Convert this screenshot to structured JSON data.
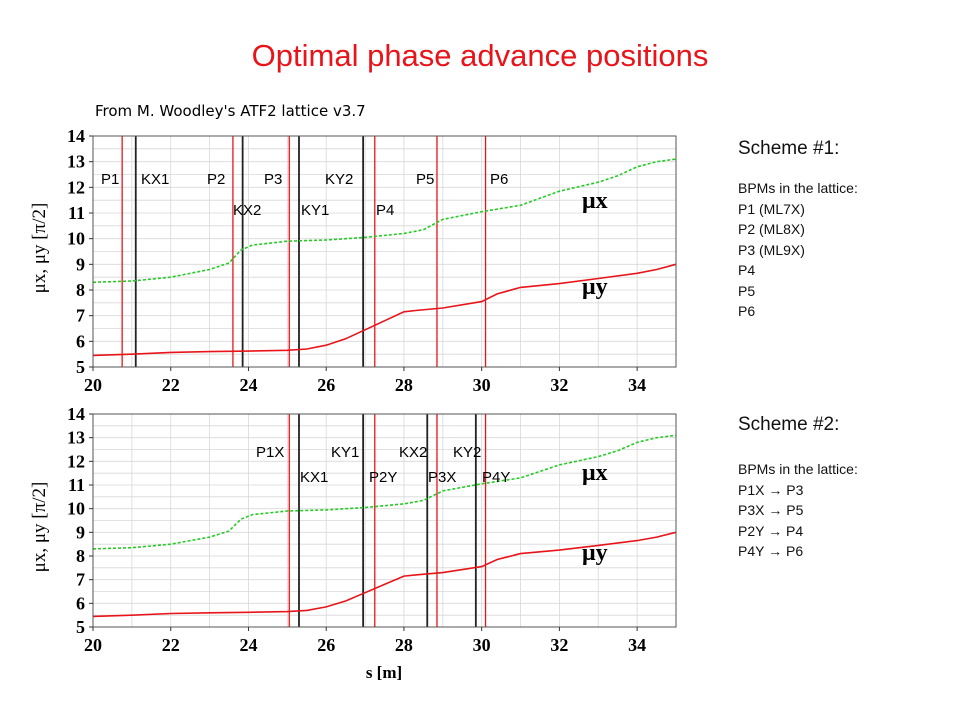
{
  "slide": {
    "title": "Optimal phase advance positions",
    "source": "From M. Woodley's ATF2 lattice v3.7"
  },
  "colors": {
    "title": "#e8141a",
    "mu_x": "#22cc22",
    "mu_y": "#e8141a",
    "bpm_line": "#e8141a",
    "corrector_line": "#222222"
  },
  "schemes": [
    {
      "title": "Scheme #1:",
      "list_header": "BPMs in the lattice:",
      "items": [
        "P1 (ML7X)",
        "P2 (ML8X)",
        "P3 (ML9X)",
        "P4",
        "P5",
        "P6"
      ]
    },
    {
      "title": "Scheme #2:",
      "list_header": "BPMs in the lattice:",
      "items": [
        "P1X → P3",
        "P3X → P5",
        "P2Y → P4",
        "P4Y → P6"
      ]
    }
  ],
  "chart_data": [
    {
      "type": "line",
      "xlabel": "",
      "ylabel": "μx, μy [π/2]",
      "xlim": [
        20,
        35
      ],
      "ylim": [
        5,
        14
      ],
      "xticks": [
        20,
        22,
        24,
        26,
        28,
        30,
        32,
        34
      ],
      "yticks": [
        5,
        6,
        7,
        8,
        9,
        10,
        11,
        12,
        13,
        14
      ],
      "grid": true,
      "series": [
        {
          "name": "μx",
          "style": "dashed",
          "color": "#22cc22",
          "x": [
            20,
            21,
            22,
            23,
            23.5,
            23.8,
            24.1,
            25,
            26,
            27,
            28,
            28.5,
            29,
            30,
            31,
            32,
            33,
            33.5,
            34,
            34.5,
            35
          ],
          "y": [
            8.3,
            8.35,
            8.5,
            8.8,
            9.05,
            9.55,
            9.75,
            9.9,
            9.95,
            10.05,
            10.2,
            10.35,
            10.75,
            11.05,
            11.3,
            11.85,
            12.2,
            12.45,
            12.8,
            13.0,
            13.1
          ]
        },
        {
          "name": "μy",
          "style": "solid",
          "color": "#e8141a",
          "x": [
            20,
            21,
            22,
            23,
            24,
            25,
            25.5,
            26,
            26.5,
            27,
            27.5,
            28,
            28.3,
            29,
            30,
            30.4,
            31,
            32,
            33,
            34,
            34.5,
            35
          ],
          "y": [
            5.45,
            5.5,
            5.57,
            5.6,
            5.62,
            5.65,
            5.7,
            5.85,
            6.1,
            6.45,
            6.8,
            7.15,
            7.2,
            7.3,
            7.55,
            7.85,
            8.1,
            8.25,
            8.45,
            8.65,
            8.8,
            9.0
          ]
        }
      ],
      "vlines": [
        {
          "x": 20.75,
          "kind": "bpm"
        },
        {
          "x": 21.1,
          "kind": "corrector"
        },
        {
          "x": 23.6,
          "kind": "bpm"
        },
        {
          "x": 23.85,
          "kind": "corrector"
        },
        {
          "x": 25.05,
          "kind": "bpm"
        },
        {
          "x": 25.3,
          "kind": "corrector"
        },
        {
          "x": 26.95,
          "kind": "corrector"
        },
        {
          "x": 27.25,
          "kind": "bpm"
        },
        {
          "x": 28.85,
          "kind": "bpm"
        },
        {
          "x": 30.1,
          "kind": "bpm"
        }
      ],
      "labels_top": [
        "P1",
        "KX1",
        "P2",
        "P3",
        "KY2",
        "P5",
        "P6"
      ],
      "labels_bottom": [
        "KX2",
        "KY1",
        "P4"
      ],
      "annotations": [
        "μx",
        "μy"
      ]
    },
    {
      "type": "line",
      "xlabel": "s [m]",
      "ylabel": "μx, μy [π/2]",
      "xlim": [
        20,
        35
      ],
      "ylim": [
        5,
        14
      ],
      "xticks": [
        20,
        22,
        24,
        26,
        28,
        30,
        32,
        34
      ],
      "yticks": [
        5,
        6,
        7,
        8,
        9,
        10,
        11,
        12,
        13,
        14
      ],
      "grid": true,
      "series": [
        {
          "name": "μx",
          "style": "dashed",
          "color": "#22cc22",
          "x": [
            20,
            21,
            22,
            23,
            23.5,
            23.8,
            24.1,
            25,
            26,
            27,
            28,
            28.5,
            29,
            30,
            31,
            32,
            33,
            33.5,
            34,
            34.5,
            35
          ],
          "y": [
            8.3,
            8.35,
            8.5,
            8.8,
            9.05,
            9.55,
            9.75,
            9.9,
            9.95,
            10.05,
            10.2,
            10.35,
            10.75,
            11.05,
            11.3,
            11.85,
            12.2,
            12.45,
            12.8,
            13.0,
            13.1
          ]
        },
        {
          "name": "μy",
          "style": "solid",
          "color": "#e8141a",
          "x": [
            20,
            21,
            22,
            23,
            24,
            25,
            25.5,
            26,
            26.5,
            27,
            27.5,
            28,
            28.3,
            29,
            30,
            30.4,
            31,
            32,
            33,
            34,
            34.5,
            35
          ],
          "y": [
            5.45,
            5.5,
            5.57,
            5.6,
            5.62,
            5.65,
            5.7,
            5.85,
            6.1,
            6.45,
            6.8,
            7.15,
            7.2,
            7.3,
            7.55,
            7.85,
            8.1,
            8.25,
            8.45,
            8.65,
            8.8,
            9.0
          ]
        }
      ],
      "vlines": [
        {
          "x": 25.05,
          "kind": "bpm"
        },
        {
          "x": 25.3,
          "kind": "corrector"
        },
        {
          "x": 26.95,
          "kind": "corrector"
        },
        {
          "x": 27.25,
          "kind": "bpm"
        },
        {
          "x": 28.6,
          "kind": "corrector"
        },
        {
          "x": 28.85,
          "kind": "bpm"
        },
        {
          "x": 29.85,
          "kind": "corrector"
        },
        {
          "x": 30.1,
          "kind": "bpm"
        }
      ],
      "labels_top": [
        "P1X",
        "KY1",
        "KX2",
        "KY2"
      ],
      "labels_bottom": [
        "KX1",
        "P2Y",
        "P3X",
        "P4Y"
      ],
      "annotations": [
        "μx",
        "μy"
      ]
    }
  ]
}
